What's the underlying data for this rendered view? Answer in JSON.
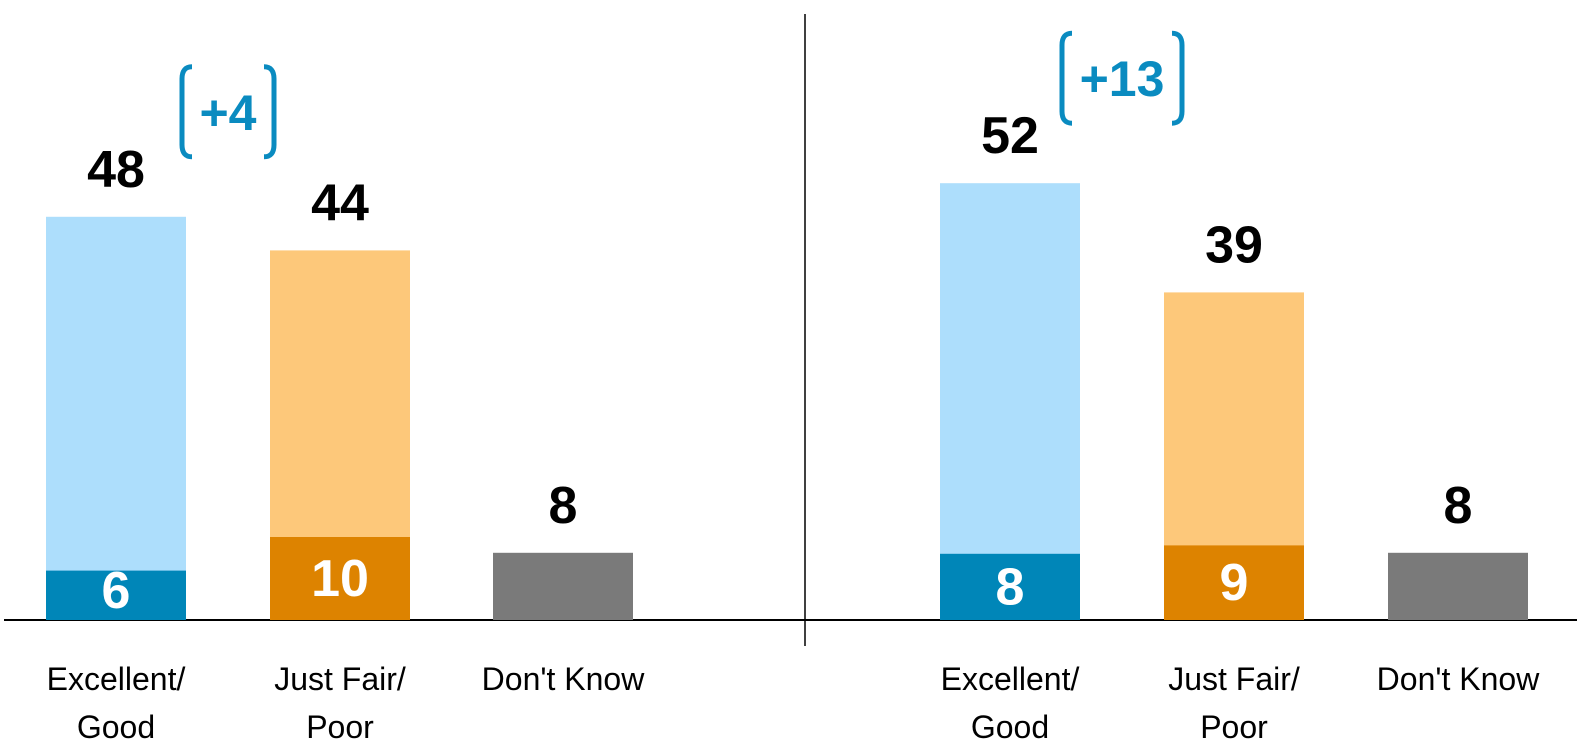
{
  "colors": {
    "good_light": "#ADDEFC",
    "good_dark": "#0086B8",
    "fair_light": "#FDC87A",
    "fair_dark": "#DD8300",
    "dont_know": "#7A7A7A",
    "bracket": "#0A8BC0",
    "axis": "#000000"
  },
  "chart_data": [
    {
      "type": "bar",
      "stacked": true,
      "categories": [
        [
          "Excellent/",
          "Good"
        ],
        [
          "Just Fair/",
          "Poor"
        ],
        [
          "Don't Know"
        ]
      ],
      "totals": [
        48,
        44,
        8
      ],
      "inner_values": [
        6,
        10,
        null
      ],
      "difference_label": "+4",
      "ylim": [
        0,
        60
      ]
    },
    {
      "type": "bar",
      "stacked": true,
      "categories": [
        [
          "Excellent/",
          "Good"
        ],
        [
          "Just Fair/",
          "Poor"
        ],
        [
          "Don't Know"
        ]
      ],
      "totals": [
        52,
        39,
        8
      ],
      "inner_values": [
        8,
        9,
        null
      ],
      "difference_label": "+13",
      "ylim": [
        0,
        60
      ]
    }
  ]
}
